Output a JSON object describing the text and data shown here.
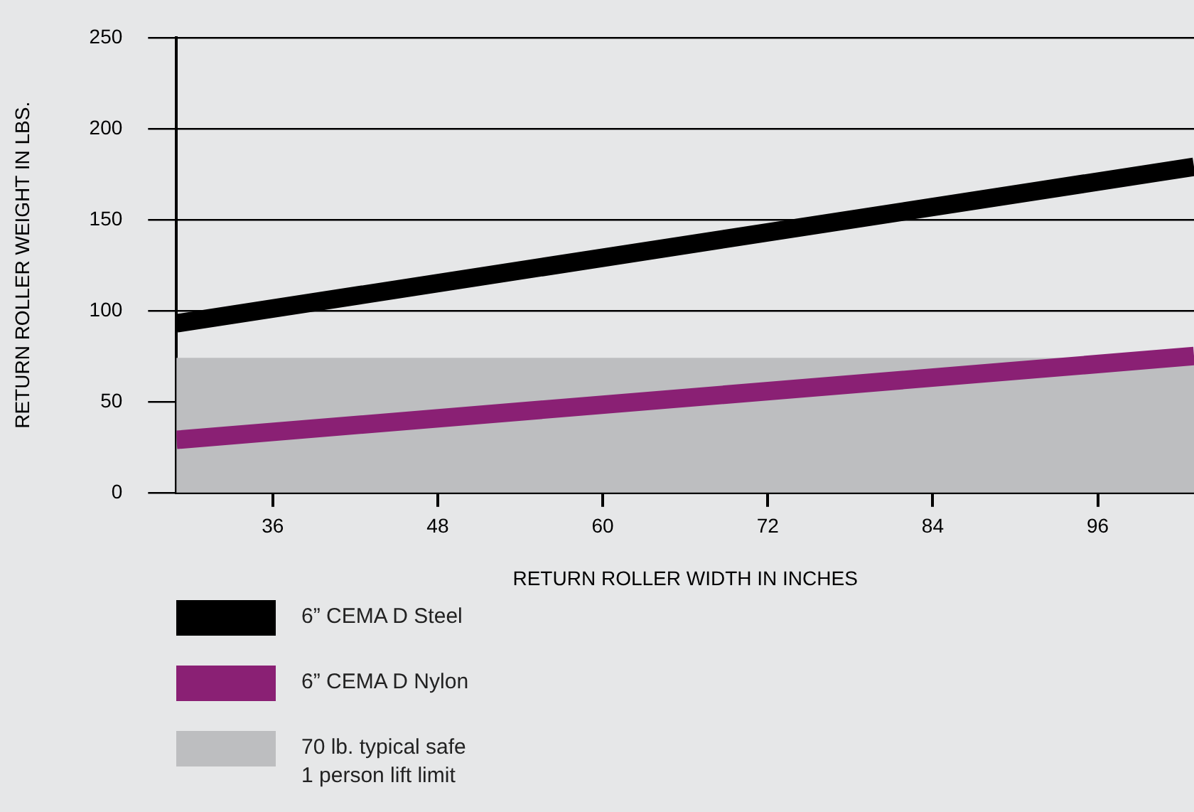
{
  "chart_data": {
    "type": "line",
    "xlabel": "RETURN ROLLER WIDTH IN INCHES",
    "ylabel": "RETURN ROLLER WEIGHT IN LBS.",
    "x": [
      29,
      103
    ],
    "series": [
      {
        "name": "6” CEMA D Steel",
        "color": "#000000",
        "values": [
          93,
          179
        ]
      },
      {
        "name": "6” CEMA D Nylon",
        "color": "#8a2074",
        "values": [
          29,
          75
        ]
      }
    ],
    "xlim": [
      29,
      103
    ],
    "xticks": [
      36,
      48,
      60,
      72,
      84,
      96
    ],
    "ylim": [
      0,
      250
    ],
    "yticks": [
      0,
      50,
      100,
      150,
      200,
      250
    ],
    "bands": [
      {
        "axis": "y",
        "from": 0,
        "to": 74,
        "label": "70 lb. typical safe\n1 person lift limit",
        "color": "#bdbec0"
      }
    ],
    "grid": "y",
    "legend": "bottom",
    "marker": "none",
    "line_style": "solid"
  }
}
